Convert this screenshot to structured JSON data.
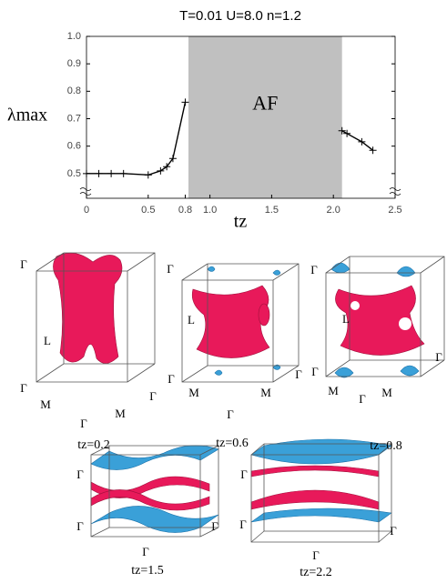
{
  "chart_data": {
    "type": "line",
    "title": "T=0.01  U=8.0  n=1.2",
    "x_label": "tz",
    "y_label": "λmax",
    "xlim": [
      0,
      2.5
    ],
    "ylim": [
      0.41,
      1.0
    ],
    "xticks": [
      0,
      0.5,
      0.8,
      {
        "value": 1,
        "label": "1.0"
      },
      1.5,
      {
        "value": 2,
        "label": "2.0"
      },
      2.5
    ],
    "yticks": [
      {
        "value": 1,
        "label": "1.0"
      },
      0.9,
      0.8,
      0.7,
      0.6,
      0.5
    ],
    "af_region": {
      "label": "AF",
      "xlim": [
        0.826,
        2.07
      ],
      "color": "#c0c0c0"
    },
    "series": [
      {
        "color": "#000000",
        "x": [
          0,
          0.1,
          0.2,
          0.3,
          0.5,
          0.6,
          0.65,
          0.7,
          0.8
        ],
        "values": [
          0.5,
          0.5,
          0.5,
          0.5,
          0.495,
          0.51,
          0.525,
          0.555,
          0.76
        ]
      },
      {
        "color": "#000000",
        "x": [
          2.07,
          2.11,
          2.23,
          2.32
        ],
        "values": [
          0.656,
          0.646,
          0.616,
          0.585
        ]
      }
    ]
  },
  "panels": [
    {
      "caption": "tz=0.2",
      "labels": [
        "Γ",
        "L",
        "Γ",
        "M",
        "Γ",
        "M",
        "Γ"
      ]
    },
    {
      "caption": "tz=0.6",
      "labels": [
        "Γ",
        "L",
        "Γ",
        "M",
        "Γ",
        "M",
        "Γ"
      ]
    },
    {
      "caption": "tz=0.8",
      "labels": [
        "Γ",
        "L",
        "Γ",
        "M",
        "Γ",
        "M",
        "Γ"
      ]
    },
    {
      "caption": "tz=1.5",
      "labels": [
        "Γ",
        "Γ",
        "Γ",
        "Γ"
      ]
    },
    {
      "caption": "tz=2.2",
      "labels": [
        "Γ",
        "Γ",
        "Γ",
        "Γ"
      ]
    }
  ]
}
